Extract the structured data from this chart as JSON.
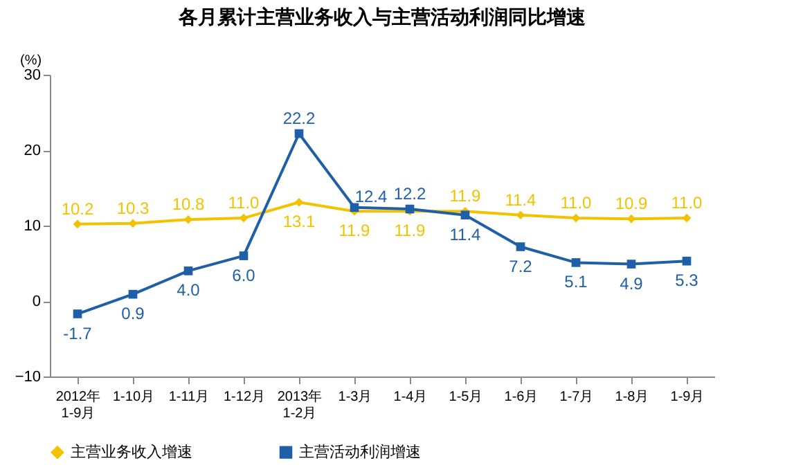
{
  "chart_data": {
    "type": "line",
    "title": "各月累计主营业务收入与主营活动利润同比增速",
    "ylabel": "(%)",
    "categories": [
      "2012年\n1-9月",
      "1-10月",
      "1-11月",
      "1-12月",
      "2013年\n1-2月",
      "1-3月",
      "1-4月",
      "1-5月",
      "1-6月",
      "1-7月",
      "1-8月",
      "1-9月"
    ],
    "series": [
      {
        "name": "主营业务收入增速",
        "color": "#f2c200",
        "marker": "diamond",
        "values": [
          10.2,
          10.3,
          10.8,
          11.0,
          13.1,
          11.9,
          11.9,
          11.9,
          11.4,
          11.0,
          10.9,
          11.0
        ],
        "value_labels": [
          "10.2",
          "10.3",
          "10.8",
          "11.0",
          "13.1",
          "11.9",
          "11.9",
          "11.9",
          "11.4",
          "11.0",
          "10.9",
          "11.0"
        ]
      },
      {
        "name": "主营活动利润增速",
        "color": "#1f5fa8",
        "marker": "square",
        "values": [
          -1.7,
          0.9,
          4.0,
          6.0,
          22.2,
          12.4,
          12.2,
          11.4,
          7.2,
          5.1,
          4.9,
          5.3
        ],
        "value_labels": [
          "-1.7",
          "0.9",
          "4.0",
          "6.0",
          "22.2",
          "12.4",
          "12.2",
          "11.4",
          "7.2",
          "5.1",
          "4.9",
          "5.3"
        ]
      }
    ],
    "ylim": [
      -10,
      30
    ],
    "yticks": [
      -10,
      0,
      10,
      20,
      30
    ],
    "grid": false,
    "legend": "bottom",
    "line_style": "solid"
  }
}
